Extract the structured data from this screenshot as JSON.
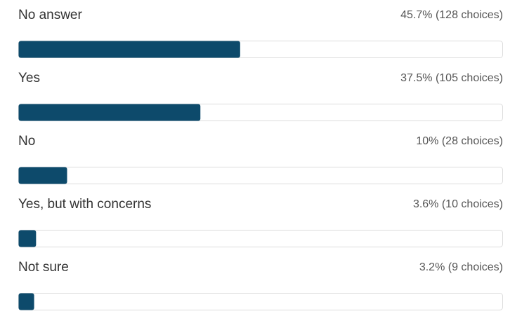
{
  "chart_data": {
    "type": "bar",
    "orientation": "horizontal",
    "categories": [
      "No answer",
      "Yes",
      "No",
      "Yes, but with concerns",
      "Not sure"
    ],
    "values": [
      45.7,
      37.5,
      10,
      3.6,
      3.2
    ],
    "value_labels": [
      "45.7% (128 choices)",
      "37.5% (105 choices)",
      "10% (28 choices)",
      "3.6% (10 choices)",
      "3.2% (9 choices)"
    ],
    "color": "#0d4a6b",
    "xlim": [
      0,
      100
    ]
  }
}
